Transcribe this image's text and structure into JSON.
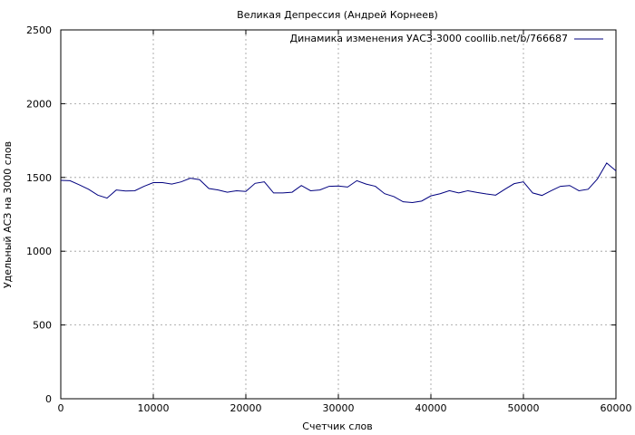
{
  "chart_data": {
    "type": "line",
    "title": "Великая Депрессия (Андрей Корнеев)",
    "xlabel": "Счетчик слов",
    "ylabel": "Удельный АСЗ на 3000 слов",
    "xlim": [
      0,
      60000
    ],
    "ylim": [
      0,
      2500
    ],
    "xticks": [
      0,
      10000,
      20000,
      30000,
      40000,
      50000,
      60000
    ],
    "yticks": [
      0,
      500,
      1000,
      1500,
      2000,
      2500
    ],
    "grid": true,
    "legend_position": "top-right",
    "series": [
      {
        "name": "Динамика изменения УАСЗ-3000 coollib.net/b/766687",
        "color": "#00007f",
        "x": [
          0,
          1000,
          2000,
          3000,
          4000,
          5000,
          6000,
          7000,
          8000,
          9000,
          10000,
          11000,
          12000,
          13000,
          14000,
          15000,
          16000,
          17000,
          18000,
          19000,
          20000,
          21000,
          22000,
          23000,
          24000,
          25000,
          26000,
          27000,
          28000,
          29000,
          30000,
          31000,
          32000,
          33000,
          34000,
          35000,
          36000,
          37000,
          38000,
          39000,
          40000,
          41000,
          42000,
          43000,
          44000,
          45000,
          46000,
          47000,
          48000,
          49000,
          50000,
          51000,
          52000,
          53000,
          54000,
          55000,
          56000,
          57000,
          58000,
          59000,
          60000
        ],
        "y": [
          1480,
          1478,
          1450,
          1420,
          1380,
          1360,
          1415,
          1408,
          1410,
          1440,
          1465,
          1465,
          1455,
          1470,
          1495,
          1485,
          1425,
          1415,
          1400,
          1410,
          1405,
          1460,
          1470,
          1395,
          1395,
          1400,
          1445,
          1410,
          1415,
          1440,
          1442,
          1435,
          1478,
          1455,
          1440,
          1390,
          1370,
          1335,
          1330,
          1340,
          1375,
          1390,
          1410,
          1395,
          1410,
          1398,
          1388,
          1380,
          1420,
          1458,
          1470,
          1395,
          1378,
          1410,
          1440,
          1445,
          1410,
          1420,
          1490,
          1598,
          1545
        ]
      }
    ]
  }
}
